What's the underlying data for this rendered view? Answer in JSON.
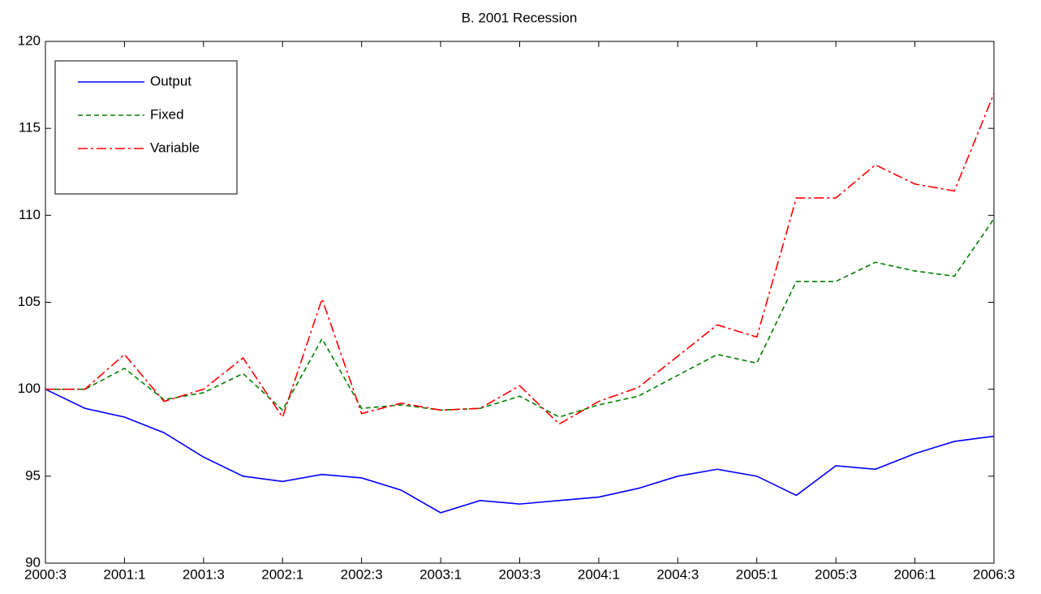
{
  "chart_data": {
    "type": "line",
    "title": "B. 2001 Recession",
    "categories": [
      "2000:3",
      null,
      "2001:1",
      null,
      "2001:3",
      null,
      "2002:1",
      null,
      "2002:3",
      null,
      "2003:1",
      null,
      "2003:3",
      null,
      "2004:1",
      null,
      "2004:3",
      null,
      "2005:1",
      null,
      "2005:3",
      null,
      "2006:1",
      null,
      "2006:3"
    ],
    "series": [
      {
        "name": "Output",
        "color": "#0000ff",
        "line_style": "solid",
        "values": [
          100,
          98.9,
          98.4,
          97.5,
          96.1,
          95.0,
          94.7,
          95.1,
          94.9,
          94.2,
          92.9,
          93.6,
          93.4,
          93.6,
          93.8,
          94.3,
          95.0,
          95.4,
          95.0,
          93.9,
          95.6,
          95.4,
          96.3,
          97.0,
          97.3
        ]
      },
      {
        "name": "Fixed",
        "color": "#008000",
        "line_style": "dashed",
        "values": [
          100,
          100,
          101.2,
          99.4,
          99.8,
          100.9,
          98.8,
          102.9,
          98.9,
          99.1,
          98.8,
          98.9,
          99.6,
          98.4,
          99.1,
          99.6,
          100.8,
          102.0,
          101.5,
          106.2,
          106.2,
          107.3,
          106.8,
          106.5,
          109.8
        ]
      },
      {
        "name": "Variable",
        "color": "#ff0000",
        "line_style": "dashdot",
        "values": [
          100,
          100,
          102.0,
          99.3,
          100.0,
          101.8,
          98.4,
          105.2,
          98.6,
          99.2,
          98.8,
          98.9,
          100.2,
          98.0,
          99.3,
          100.1,
          101.9,
          103.7,
          103.0,
          111.0,
          111.0,
          112.9,
          111.8,
          111.4,
          117.0
        ]
      }
    ],
    "ylim": [
      90,
      120
    ],
    "yticks": [
      90,
      95,
      100,
      105,
      110,
      115,
      120
    ],
    "grid": false,
    "legend": "upper left"
  }
}
